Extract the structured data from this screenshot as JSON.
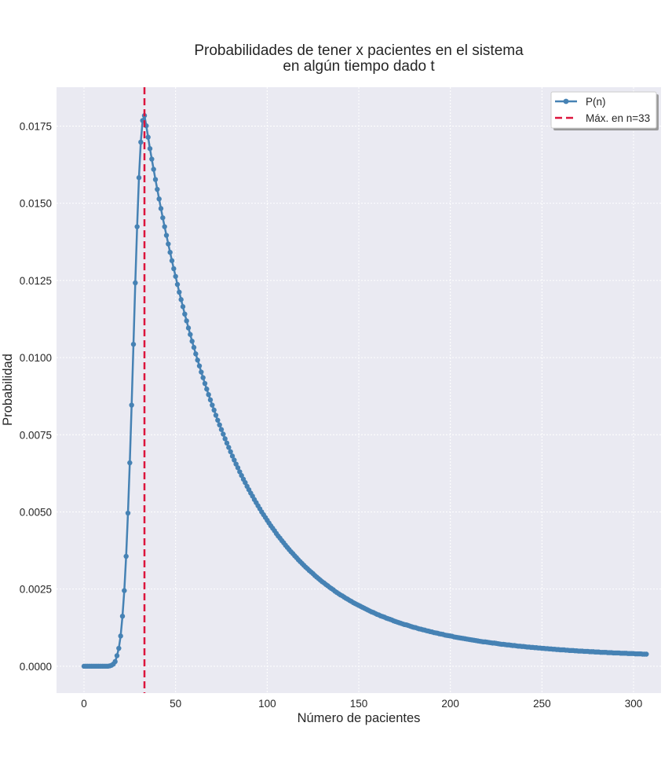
{
  "chart_data": {
    "type": "line",
    "title_lines": [
      "Probabilidades de tener x pacientes en el sistema",
      "en algún tiempo dado t"
    ],
    "xlabel": "Número de pacientes",
    "ylabel": "Probabilidad",
    "xlim": [
      -15,
      315
    ],
    "ylim": [
      -0.00087,
      0.01876
    ],
    "xticks": [
      0,
      50,
      100,
      150,
      200,
      250,
      300
    ],
    "yticks": [
      0.0,
      0.0025,
      0.005,
      0.0075,
      0.01,
      0.0125,
      0.015,
      0.0175
    ],
    "xtick_labels": [
      "0",
      "50",
      "100",
      "150",
      "200",
      "250",
      "300"
    ],
    "ytick_labels": [
      "0.0000",
      "0.0025",
      "0.0050",
      "0.0075",
      "0.0100",
      "0.0125",
      "0.0150",
      "0.0175"
    ],
    "grid": true,
    "legend_position": "top-right",
    "colors": {
      "series": "#4682b4",
      "marker_line": "#dc143c",
      "plot_bg": "#eaeaf2",
      "grid": "#ffffff"
    },
    "series": [
      {
        "name": "P(n)",
        "x_start": 0,
        "x_step": 1,
        "values": [
          0,
          0,
          0,
          0,
          0,
          0,
          0,
          0,
          0,
          0,
          0,
          0,
          0,
          0,
          1e-05,
          3e-05,
          7e-05,
          0.00015,
          0.00034,
          0.00058,
          0.00098,
          0.00162,
          0.00245,
          0.00356,
          0.00496,
          0.00659,
          0.00846,
          0.01043,
          0.01242,
          0.01424,
          0.01583,
          0.01698,
          0.01768,
          0.01784,
          0.01751,
          0.01714,
          0.01677,
          0.01643,
          0.0161,
          0.01577,
          0.01545,
          0.01514,
          0.01483,
          0.01453,
          0.01424,
          0.01396,
          0.01368,
          0.01341,
          0.01314,
          0.01288,
          0.01263,
          0.01237,
          0.01212,
          0.01188,
          0.01165,
          0.01141,
          0.01119,
          0.01096,
          0.01075,
          0.01053,
          0.01033,
          0.01012,
          0.00992,
          0.00973,
          0.00953,
          0.00935,
          0.00916,
          0.00898,
          0.0088,
          0.00863,
          0.00846,
          0.0083,
          0.00813,
          0.00797,
          0.00782,
          0.00767,
          0.00752,
          0.00737,
          0.00723,
          0.00709,
          0.00695,
          0.00681,
          0.00668,
          0.00655,
          0.00643,
          0.0063,
          0.00618,
          0.00606,
          0.00595,
          0.00583,
          0.00572,
          0.00561,
          0.00551,
          0.0054,
          0.0053,
          0.0052,
          0.0051,
          0.005,
          0.00491,
          0.00482,
          0.00473,
          0.00464,
          0.00455,
          0.00447,
          0.00439,
          0.0043,
          0.00422,
          0.00415,
          0.00407,
          0.004,
          0.00392,
          0.00385,
          0.00378,
          0.00371,
          0.00365,
          0.00358,
          0.00352,
          0.00345,
          0.00339,
          0.00333,
          0.00327,
          0.00321,
          0.00316,
          0.0031,
          0.00305,
          0.003,
          0.00294,
          0.00289,
          0.00284,
          0.00279,
          0.00274,
          0.0027,
          0.00265,
          0.00261,
          0.00256,
          0.00252,
          0.00248,
          0.00243,
          0.00239,
          0.00235,
          0.00231,
          0.00228,
          0.00224,
          0.0022,
          0.00217,
          0.00213,
          0.0021,
          0.00206,
          0.00203,
          0.002,
          0.00197,
          0.00194,
          0.00191,
          0.00188,
          0.00185,
          0.00182,
          0.00179,
          0.00176,
          0.00174,
          0.00171,
          0.00168,
          0.00166,
          0.00163,
          0.00161,
          0.00159,
          0.00156,
          0.00154,
          0.00152,
          0.0015,
          0.00147,
          0.00145,
          0.00143,
          0.00141,
          0.00139,
          0.00137,
          0.00135,
          0.00134,
          0.00132,
          0.0013,
          0.00128,
          0.00126,
          0.00125,
          0.00123,
          0.00121,
          0.0012,
          0.00118,
          0.00117,
          0.00115,
          0.00114,
          0.00112,
          0.00111,
          0.00109,
          0.00108,
          0.00107,
          0.00105,
          0.00104,
          0.00103,
          0.00101,
          0.001,
          0.00099,
          0.00098,
          0.00097,
          0.00095,
          0.00094,
          0.00093,
          0.00092,
          0.00091,
          0.0009,
          0.00089,
          0.00088,
          0.00087,
          0.00086,
          0.00085,
          0.00084,
          0.00083,
          0.00082,
          0.00081,
          0.0008,
          0.00079,
          0.00079,
          0.00078,
          0.00077,
          0.00076,
          0.00075,
          0.00075,
          0.00074,
          0.00073,
          0.00072,
          0.00071,
          0.00071,
          0.0007,
          0.00069,
          0.00069,
          0.00068,
          0.00067,
          0.00067,
          0.00066,
          0.00065,
          0.00065,
          0.00064,
          0.00064,
          0.00063,
          0.00062,
          0.00062,
          0.00061,
          0.00061,
          0.0006,
          0.0006,
          0.00059,
          0.00059,
          0.00058,
          0.00058,
          0.00057,
          0.00057,
          0.00056,
          0.00056,
          0.00055,
          0.00055,
          0.00054,
          0.00054,
          0.00053,
          0.00053,
          0.00053,
          0.00052,
          0.00052,
          0.00051,
          0.00051,
          0.00051,
          0.0005,
          0.0005,
          0.00049,
          0.00049,
          0.00049,
          0.00048,
          0.00048,
          0.00048,
          0.00047,
          0.00047,
          0.00047,
          0.00046,
          0.00046,
          0.00046,
          0.00045,
          0.00045,
          0.00045,
          0.00045,
          0.00044,
          0.00044,
          0.00044,
          0.00043,
          0.00043,
          0.00043,
          0.00043,
          0.00042,
          0.00042,
          0.00042,
          0.00042,
          0.00041,
          0.00041,
          0.00041,
          0.00041,
          0.0004,
          0.0004,
          0.0004,
          0.0004,
          0.00039,
          0.00039,
          0.00039
        ]
      }
    ],
    "vline": {
      "x": 33,
      "label": "Máx. en n=33",
      "style": "dashed"
    }
  }
}
